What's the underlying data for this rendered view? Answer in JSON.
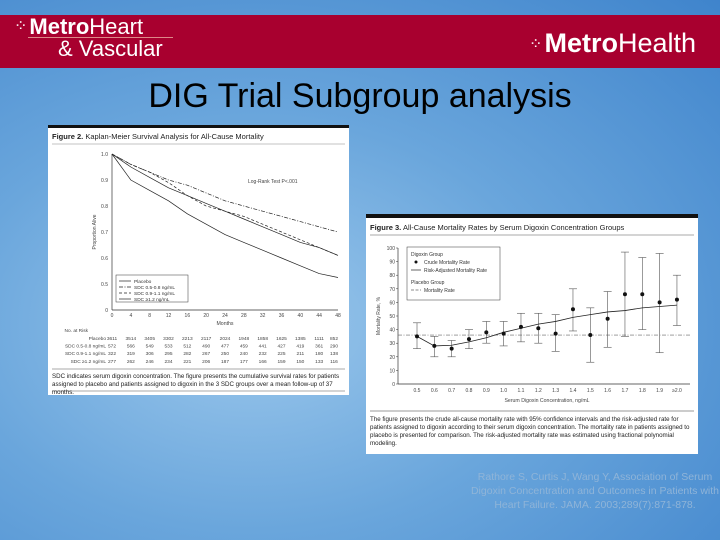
{
  "header": {
    "left_logo": {
      "bold": "Metro",
      "light": "Heart",
      "sub": "& Vascular"
    },
    "right_logo": {
      "bold": "Metro",
      "light": "Health"
    },
    "brand_color": "#a8002f"
  },
  "slide_title": "DIG Trial Subgroup analysis",
  "citation": "Rathore S, Curtis J, Wang Y, Association of Serum Digoxin Concentration and Outcomes in Patients with Heart Failure. JAMA. 2003;289(7):871-878.",
  "chart_data": [
    {
      "type": "line",
      "figure_label": "Figure 2.",
      "title": "Kaplan-Meier Survival Analysis for All-Cause Mortality",
      "xlabel": "Months",
      "ylabel": "Proportion Alive",
      "annotation": "Log-Rank Test P<.001",
      "x": [
        0,
        4,
        8,
        12,
        16,
        20,
        24,
        28,
        32,
        36,
        40,
        44,
        48
      ],
      "xlim": [
        0,
        48
      ],
      "ylim": [
        0,
        1.0
      ],
      "yticks": [
        "0",
        "0.5",
        "0.6",
        "0.7",
        "0.8",
        "0.9",
        "1.0"
      ],
      "legend_position": "bottom-left",
      "series": [
        {
          "name": "Placebo",
          "style": "solid",
          "values": [
            1.0,
            0.95,
            0.91,
            0.87,
            0.84,
            0.81,
            0.78,
            0.75,
            0.72,
            0.69,
            0.66,
            0.64,
            0.61
          ]
        },
        {
          "name": "SDC 0.5-0.8 ng/mL",
          "style": "dashdot",
          "values": [
            1.0,
            0.96,
            0.93,
            0.9,
            0.88,
            0.85,
            0.82,
            0.8,
            0.78,
            0.76,
            0.74,
            0.72,
            0.7
          ]
        },
        {
          "name": "SDC 0.9-1.1 ng/mL",
          "style": "dashed",
          "values": [
            1.0,
            0.96,
            0.93,
            0.89,
            0.84,
            0.8,
            0.78,
            0.76,
            0.73,
            0.7,
            0.67,
            0.64,
            0.61
          ]
        },
        {
          "name": "SDC ≥1.2 ng/mL",
          "style": "solid",
          "values": [
            1.0,
            0.9,
            0.86,
            0.82,
            0.77,
            0.73,
            0.69,
            0.66,
            0.63,
            0.6,
            0.57,
            0.54,
            0.525
          ]
        }
      ],
      "risk_table": {
        "header": "No. at Risk",
        "rows": [
          {
            "label": "Placebo",
            "values": [
              "3611",
              "3514",
              "3405",
              "3302",
              "2213",
              "2117",
              "2024",
              "1948",
              "1858",
              "1625",
              "1385",
              "1111",
              "852"
            ]
          },
          {
            "label": "SDC 0.5-0.8 ng/mL",
            "values": [
              "572",
              "566",
              "549",
              "533",
              "512",
              "490",
              "477",
              "459",
              "441",
              "427",
              "419",
              "361",
              "290"
            ]
          },
          {
            "label": "SDC 0.9-1.1 ng/mL",
            "values": [
              "322",
              "319",
              "306",
              "295",
              "282",
              "267",
              "250",
              "240",
              "232",
              "225",
              "211",
              "180",
              "138"
            ]
          },
          {
            "label": "SDC ≥1.2 ng/mL",
            "values": [
              "277",
              "262",
              "246",
              "234",
              "221",
              "206",
              "187",
              "177",
              "166",
              "159",
              "150",
              "133",
              "116"
            ]
          }
        ]
      },
      "caption": "SDC indicates serum digoxin concentration. The figure presents the cumulative survival rates for patients assigned to placebo and patients assigned to digoxin in the 3 SDC groups over a mean follow-up of 37 months."
    },
    {
      "type": "scatter",
      "figure_label": "Figure 3.",
      "title": "All-Cause Mortality Rates by Serum Digoxin Concentration Groups",
      "xlabel": "Serum Digoxin Concentration, ng/mL",
      "ylabel": "Mortality Rate, %",
      "ylim": [
        0,
        100
      ],
      "yticks": [
        0,
        10,
        20,
        30,
        40,
        50,
        60,
        70,
        80,
        90,
        100
      ],
      "categories": [
        "0.5",
        "0.6",
        "0.7",
        "0.8",
        "0.9",
        "1.0",
        "1.1",
        "1.2",
        "1.3",
        "1.4",
        "1.5",
        "1.6",
        "1.7",
        "1.8",
        "1.9",
        "≥2.0"
      ],
      "legend": {
        "group1": "Digoxin Group",
        "crude": "Crude Mortality Rate",
        "adjusted": "Risk-Adjusted Mortality Rate",
        "group2": "Placebo Group",
        "placebo": "Mortality Rate"
      },
      "legend_position": "top-left",
      "crude": [
        35,
        28,
        26,
        33,
        38,
        37,
        42,
        41,
        37,
        55,
        36,
        48,
        66,
        66,
        60,
        62
      ],
      "ci_low": [
        26,
        20,
        20,
        26,
        30,
        28,
        31,
        30,
        24,
        39,
        16,
        27,
        35,
        40,
        23,
        43
      ],
      "ci_high": [
        45,
        35,
        32,
        40,
        46,
        46,
        52,
        52,
        51,
        70,
        56,
        68,
        97,
        93,
        96,
        80
      ],
      "adjusted": [
        35,
        28,
        28.5,
        31,
        34,
        38,
        41,
        44,
        46,
        49,
        51,
        53,
        54,
        56,
        57,
        58
      ],
      "placebo_rate": 36,
      "caption": "The figure presents the crude all-cause mortality rate with 95% confidence intervals and the risk-adjusted rate for patients assigned to digoxin according to their serum digoxin concentration. The mortality rate in patients assigned to placebo is presented for comparison. The risk-adjusted mortality rate was estimated using fractional polynomial modeling."
    }
  ]
}
